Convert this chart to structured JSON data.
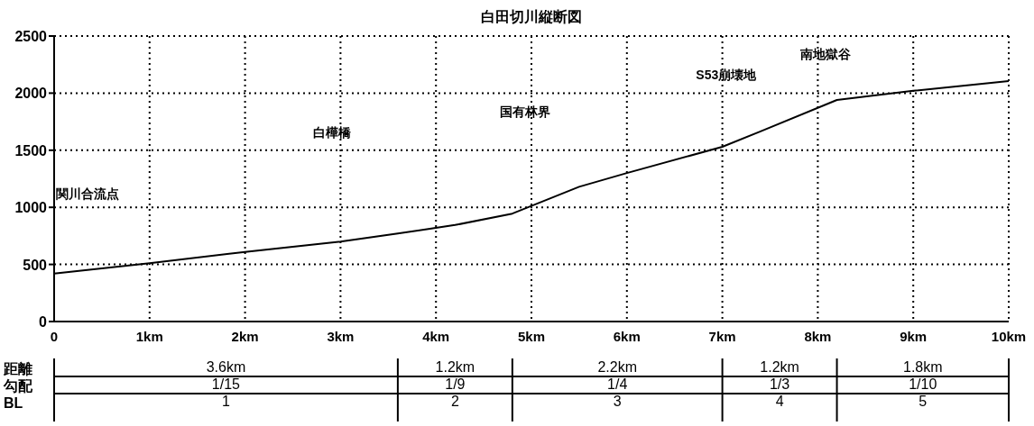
{
  "chart_data": {
    "type": "line",
    "title": "白田切川縦断図",
    "x": [
      0,
      1,
      2,
      3,
      3.6,
      4.2,
      4.8,
      5.5,
      6,
      7,
      7.4,
      8.2,
      9,
      10
    ],
    "series": [
      {
        "color": "#000000",
        "values": [
          420,
          510,
          610,
          700,
          770,
          845,
          945,
          1180,
          1300,
          1530,
          1665,
          1940,
          2020,
          2105
        ]
      }
    ],
    "xlim": [
      0,
      10
    ],
    "ylim": [
      0,
      2500
    ],
    "xticks": [
      0,
      {
        "value": 1,
        "label": "1km"
      },
      {
        "value": 2,
        "label": "2km"
      },
      {
        "value": 3,
        "label": "3km"
      },
      {
        "value": 4,
        "label": "4km"
      },
      {
        "value": 5,
        "label": "5km"
      },
      {
        "value": 6,
        "label": "6km"
      },
      {
        "value": 7,
        "label": "7km"
      },
      {
        "value": 8,
        "label": "8km"
      },
      {
        "value": 9,
        "label": "9km"
      },
      {
        "value": 10,
        "label": "10km"
      }
    ],
    "yticks": [
      0,
      500,
      1000,
      1500,
      2000,
      2500
    ],
    "grid": true,
    "marker": "none",
    "line_style": "solid",
    "annotations": [
      "関川合流点",
      "白樺橋",
      "国有林界",
      "S53崩壊地",
      "南地獄谷",
      "距離",
      "勾配",
      "BL",
      "3.6km",
      "1/15",
      "1",
      "1.2km",
      "1/9",
      "2",
      "2.2km",
      "1/4",
      "3",
      "1.2km",
      "1/3",
      "4",
      "1.8km",
      "1/10",
      "5"
    ]
  }
}
